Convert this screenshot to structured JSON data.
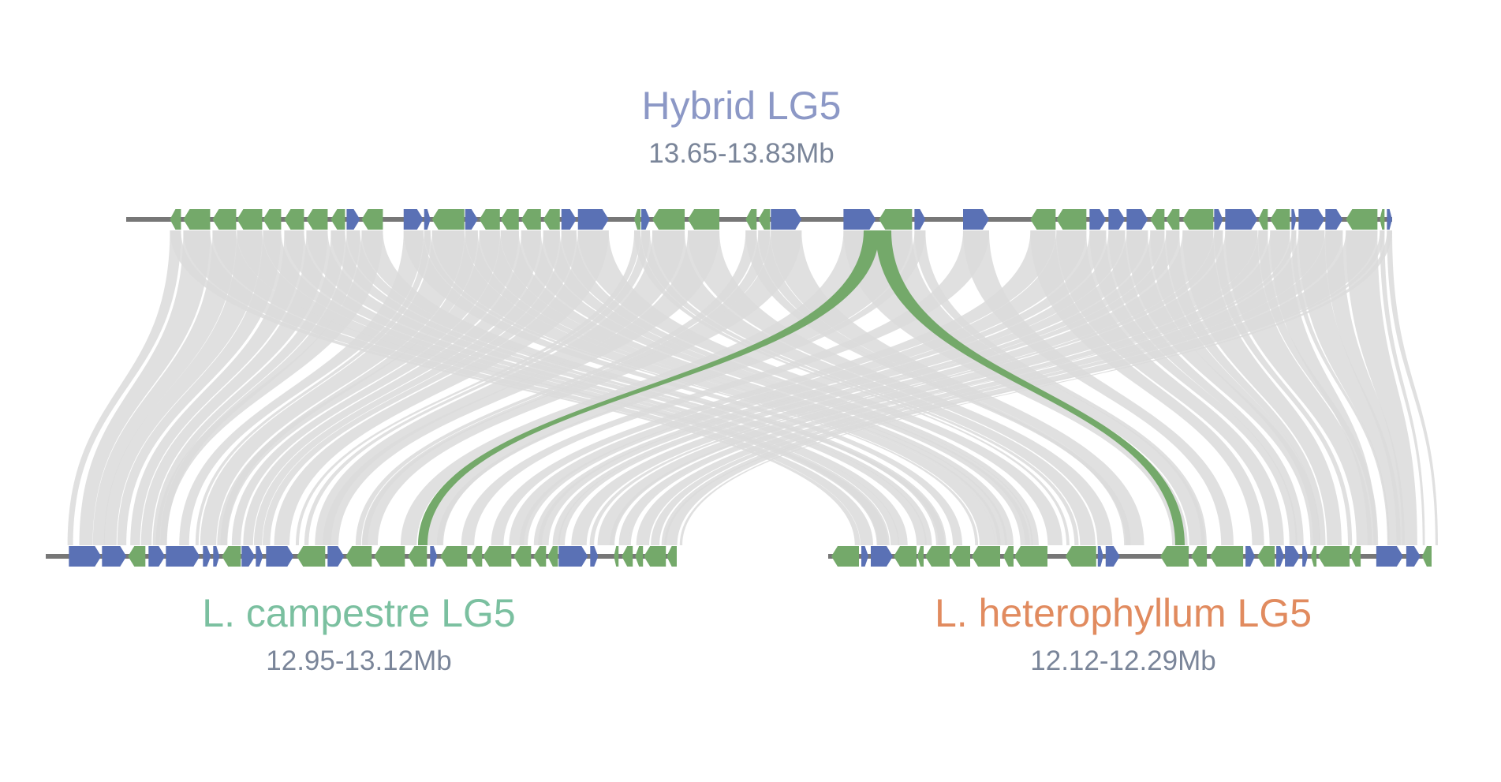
{
  "colors": {
    "forward_gene": "#5a71b5",
    "reverse_gene": "#74a96a",
    "link_gray": "#dadada",
    "link_highlight": "#74a96a",
    "backbone": "#777777"
  },
  "hybrid": {
    "title": "Hybrid LG5",
    "range": "13.65-13.83Mb",
    "color": "#8c98c6"
  },
  "campestre": {
    "title": "L. campestre LG5",
    "range": "12.95-13.12Mb",
    "color": "#7bc0a0"
  },
  "heterophyllum": {
    "title": "L. heterophyllum LG5",
    "range": "12.12-12.29Mb",
    "color": "#e18b5f"
  }
}
